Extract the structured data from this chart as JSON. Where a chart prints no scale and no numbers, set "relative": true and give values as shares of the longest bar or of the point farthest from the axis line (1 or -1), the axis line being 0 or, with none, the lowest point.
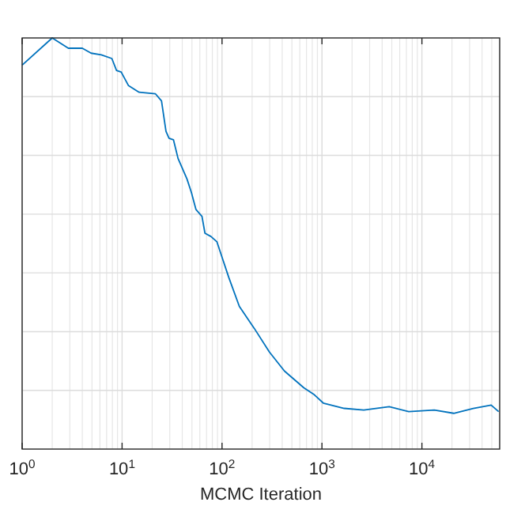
{
  "chart_data": {
    "type": "line",
    "xlabel": "MCMC Iteration",
    "relative": true,
    "log": "x",
    "grid": true,
    "xlim": [
      1,
      60000
    ],
    "xticks": [
      {
        "value": 1,
        "label": "10$^{0}$"
      },
      {
        "value": 10,
        "label": "10$^{1}$"
      },
      {
        "value": 100,
        "label": "10$^{2}$"
      },
      {
        "value": 1000,
        "label": "10$^{3}$"
      },
      {
        "value": 10000,
        "label": "10$^{4}$"
      }
    ],
    "series": [
      {
        "color": "#0072bd",
        "x": [
          1,
          2,
          2.9,
          4,
          4.9,
          6.2,
          7.9,
          8.8,
          9.8,
          11.6,
          14.8,
          21.6,
          24.8,
          27.5,
          29.5,
          32.7,
          36.3,
          44.6,
          49.4,
          54.8,
          63,
          67.5,
          77.5,
          89,
          98.6,
          117,
          149,
          211,
          298,
          421,
          659,
          839,
          1030,
          1670,
          2620,
          4710,
          7380,
          13300,
          20800,
          32600,
          49300,
          58600
        ],
        "values": [
          0.934,
          1,
          0.975,
          0.975,
          0.963,
          0.959,
          0.95,
          0.921,
          0.917,
          0.884,
          0.868,
          0.864,
          0.847,
          0.773,
          0.756,
          0.752,
          0.707,
          0.657,
          0.624,
          0.583,
          0.566,
          0.525,
          0.517,
          0.504,
          0.471,
          0.417,
          0.347,
          0.293,
          0.236,
          0.19,
          0.149,
          0.132,
          0.112,
          0.099,
          0.095,
          0.103,
          0.091,
          0.095,
          0.087,
          0.099,
          0.107,
          0.091
        ]
      }
    ]
  }
}
